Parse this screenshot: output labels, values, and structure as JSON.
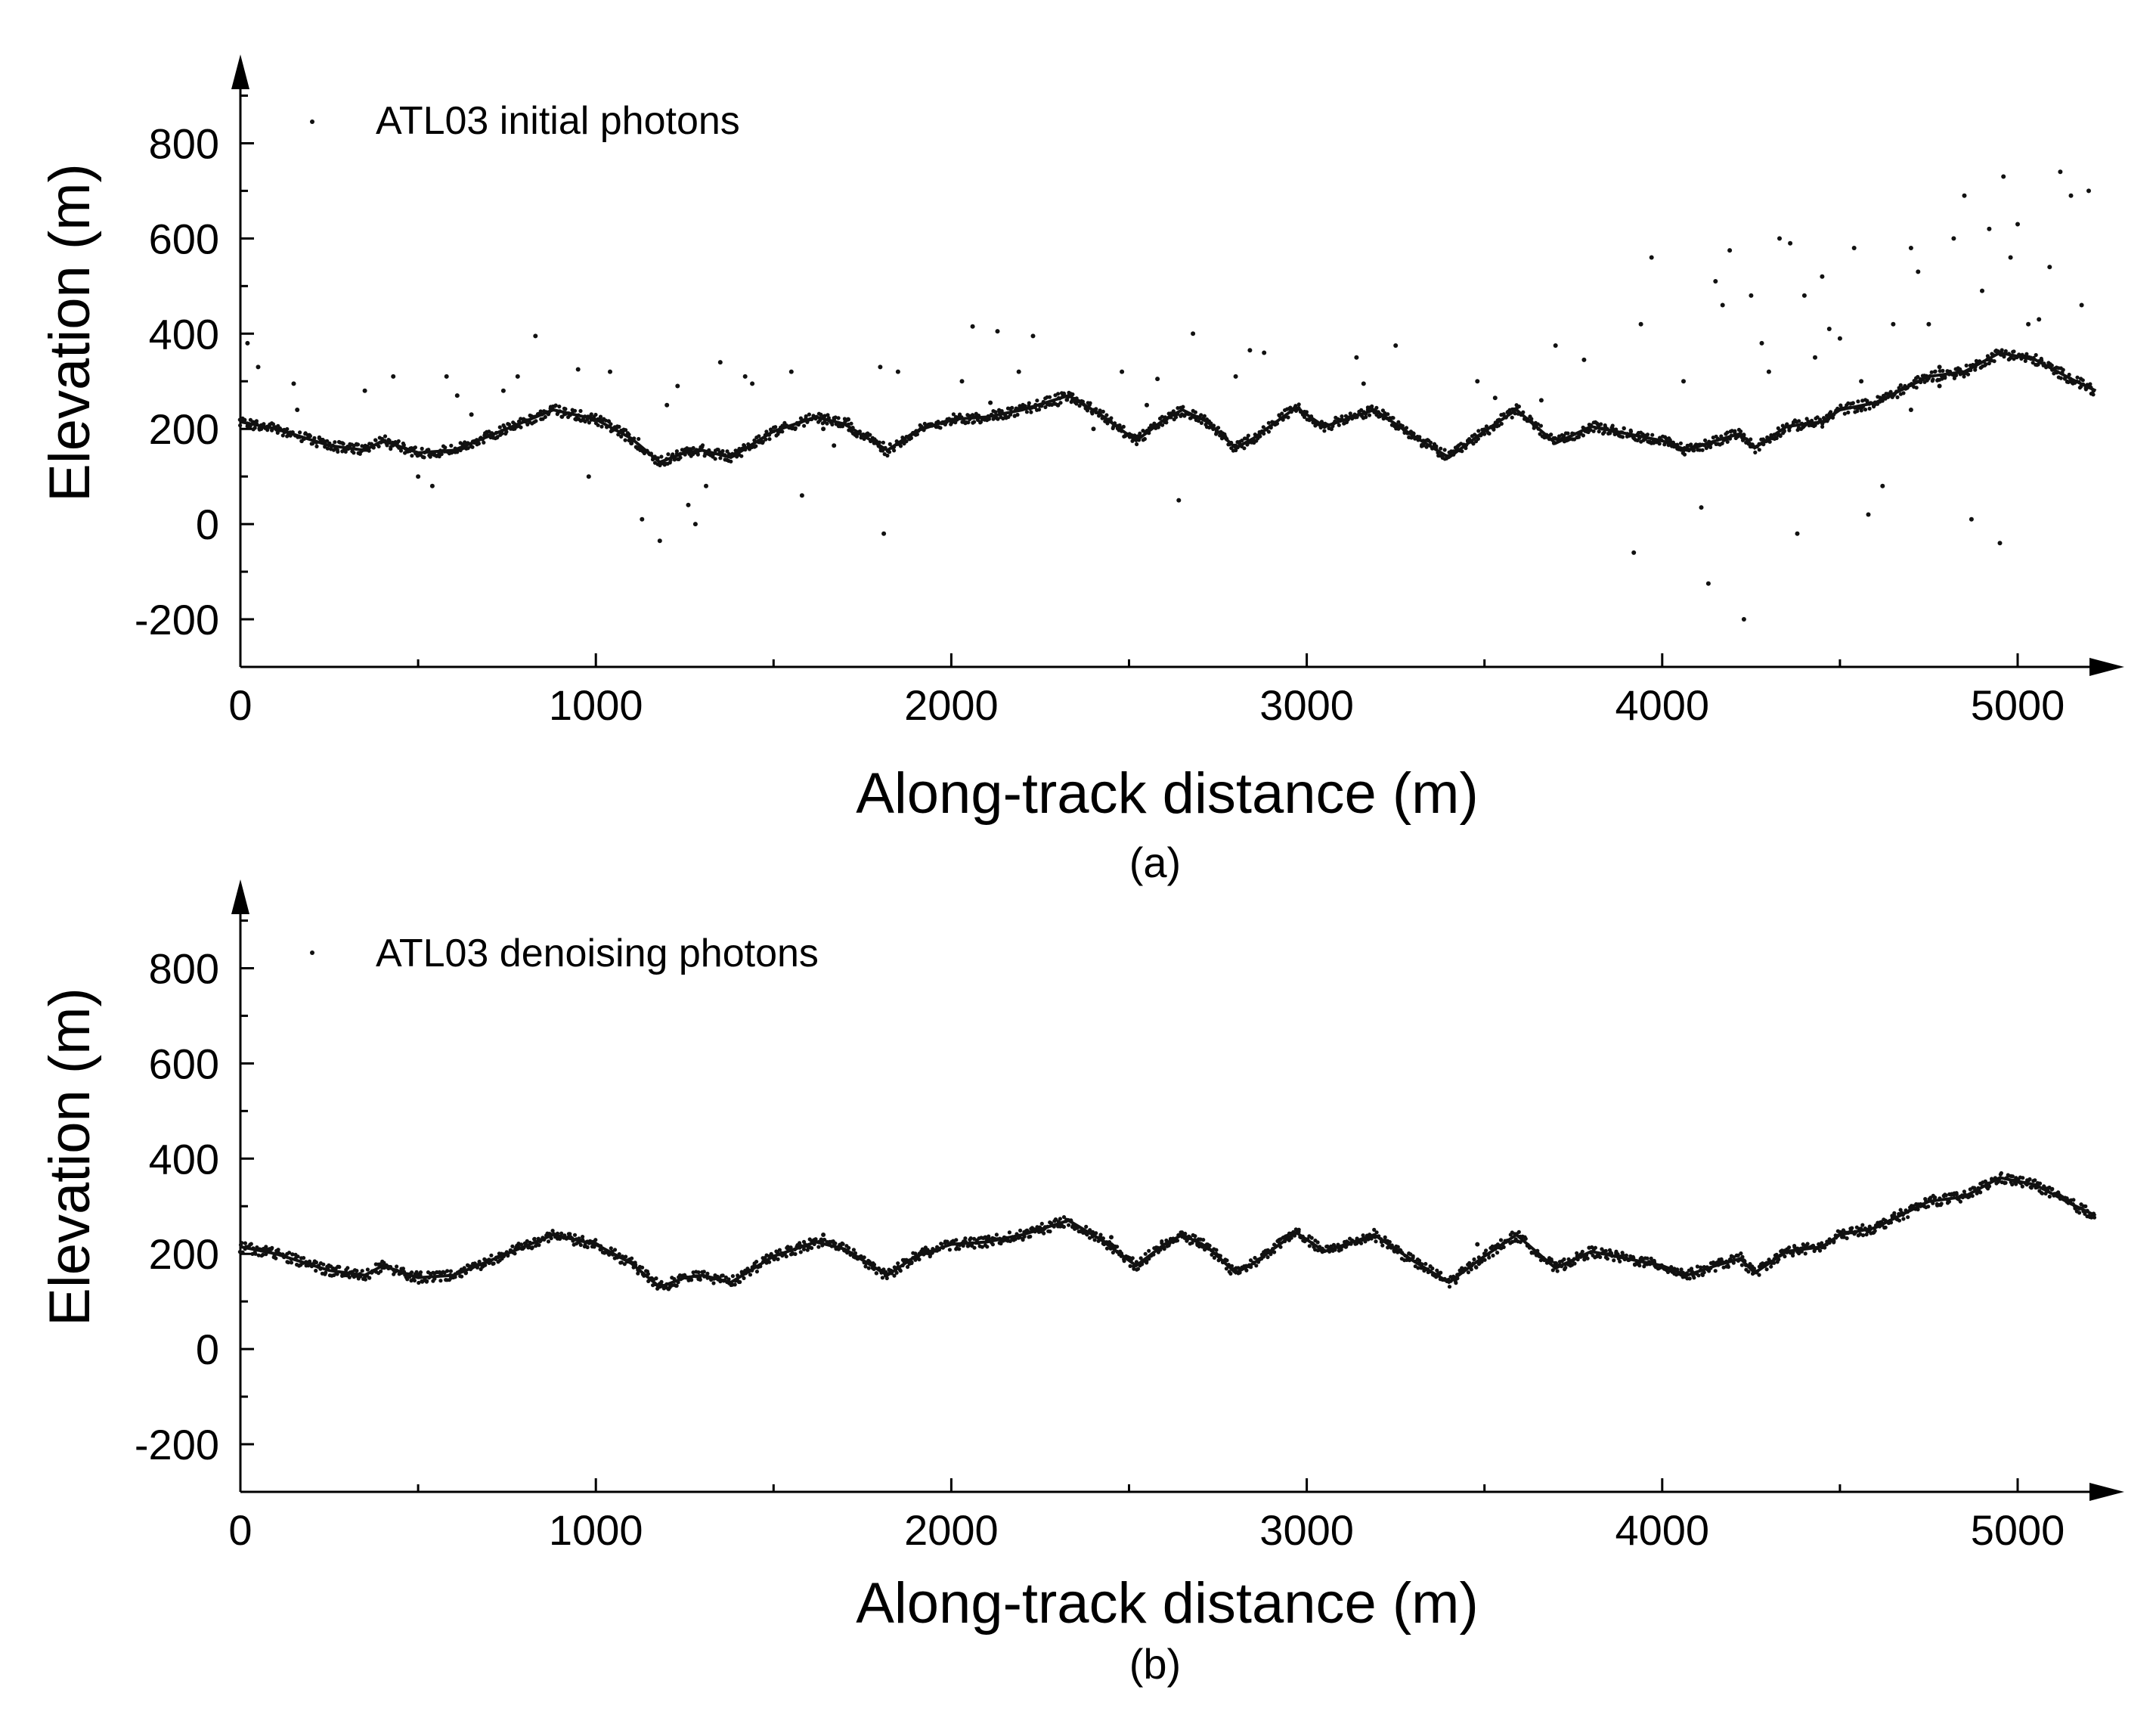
{
  "figure": {
    "panel_captions": [
      "(a)",
      "(b)"
    ]
  },
  "chart_data": [
    {
      "type": "scatter",
      "panel": "(a)",
      "legend": "ATL03 initial photons",
      "legend_position": "top-left",
      "xlabel": "Along-track distance (m)",
      "ylabel": "Elevation (m)",
      "xlim": [
        0,
        5500
      ],
      "ylim": [
        -300,
        950
      ],
      "xticks": [
        0,
        1000,
        2000,
        3000,
        4000,
        5000
      ],
      "xtick_labels": [
        "0",
        "1000",
        "2000",
        "3000",
        "4000",
        "5000"
      ],
      "yticks": [
        -200,
        0,
        200,
        400,
        600,
        800
      ],
      "ytick_labels": [
        "-200",
        "0",
        "200",
        "400",
        "600",
        "800"
      ],
      "grid": false,
      "surface_profile": [
        [
          0,
          215
        ],
        [
          100,
          200
        ],
        [
          250,
          165
        ],
        [
          350,
          155
        ],
        [
          400,
          175
        ],
        [
          500,
          150
        ],
        [
          600,
          155
        ],
        [
          700,
          185
        ],
        [
          880,
          240
        ],
        [
          1000,
          220
        ],
        [
          1100,
          180
        ],
        [
          1180,
          130
        ],
        [
          1250,
          150
        ],
        [
          1300,
          155
        ],
        [
          1380,
          140
        ],
        [
          1500,
          195
        ],
        [
          1620,
          225
        ],
        [
          1700,
          210
        ],
        [
          1820,
          155
        ],
        [
          1900,
          195
        ],
        [
          2000,
          220
        ],
        [
          2100,
          225
        ],
        [
          2200,
          240
        ],
        [
          2330,
          270
        ],
        [
          2420,
          230
        ],
        [
          2520,
          175
        ],
        [
          2600,
          220
        ],
        [
          2650,
          240
        ],
        [
          2720,
          215
        ],
        [
          2800,
          160
        ],
        [
          2850,
          180
        ],
        [
          2970,
          245
        ],
        [
          3050,
          205
        ],
        [
          3190,
          240
        ],
        [
          3300,
          185
        ],
        [
          3400,
          140
        ],
        [
          3500,
          195
        ],
        [
          3590,
          240
        ],
        [
          3700,
          170
        ],
        [
          3800,
          205
        ],
        [
          3900,
          190
        ],
        [
          4000,
          175
        ],
        [
          4070,
          155
        ],
        [
          4150,
          175
        ],
        [
          4220,
          190
        ],
        [
          4260,
          160
        ],
        [
          4350,
          205
        ],
        [
          4450,
          215
        ],
        [
          4500,
          240
        ],
        [
          4600,
          255
        ],
        [
          4750,
          310
        ],
        [
          4850,
          320
        ],
        [
          4950,
          360
        ],
        [
          5050,
          345
        ],
        [
          5150,
          305
        ],
        [
          5220,
          280
        ]
      ],
      "noise_points": [
        [
          20,
          380
        ],
        [
          50,
          330
        ],
        [
          150,
          295
        ],
        [
          160,
          240
        ],
        [
          350,
          280
        ],
        [
          430,
          310
        ],
        [
          500,
          100
        ],
        [
          540,
          80
        ],
        [
          580,
          310
        ],
        [
          610,
          270
        ],
        [
          650,
          230
        ],
        [
          740,
          280
        ],
        [
          780,
          310
        ],
        [
          830,
          395
        ],
        [
          950,
          325
        ],
        [
          980,
          100
        ],
        [
          1040,
          320
        ],
        [
          1100,
          170
        ],
        [
          1130,
          10
        ],
        [
          1180,
          -35
        ],
        [
          1200,
          250
        ],
        [
          1230,
          290
        ],
        [
          1260,
          40
        ],
        [
          1280,
          0
        ],
        [
          1310,
          80
        ],
        [
          1350,
          340
        ],
        [
          1420,
          310
        ],
        [
          1440,
          295
        ],
        [
          1550,
          320
        ],
        [
          1580,
          60
        ],
        [
          1640,
          200
        ],
        [
          1670,
          165
        ],
        [
          1710,
          220
        ],
        [
          1800,
          330
        ],
        [
          1810,
          -20
        ],
        [
          1850,
          320
        ],
        [
          2030,
          300
        ],
        [
          2060,
          415
        ],
        [
          2110,
          255
        ],
        [
          2130,
          405
        ],
        [
          2190,
          320
        ],
        [
          2230,
          395
        ],
        [
          2300,
          250
        ],
        [
          2400,
          200
        ],
        [
          2480,
          320
        ],
        [
          2550,
          250
        ],
        [
          2580,
          305
        ],
        [
          2640,
          50
        ],
        [
          2680,
          400
        ],
        [
          2800,
          310
        ],
        [
          2840,
          365
        ],
        [
          2880,
          360
        ],
        [
          3050,
          205
        ],
        [
          3140,
          350
        ],
        [
          3160,
          295
        ],
        [
          3250,
          375
        ],
        [
          3300,
          190
        ],
        [
          3480,
          300
        ],
        [
          3530,
          265
        ],
        [
          3620,
          220
        ],
        [
          3660,
          260
        ],
        [
          3700,
          375
        ],
        [
          3780,
          345
        ],
        [
          3860,
          200
        ],
        [
          3920,
          -60
        ],
        [
          3940,
          420
        ],
        [
          3970,
          560
        ],
        [
          4020,
          170
        ],
        [
          4060,
          300
        ],
        [
          4110,
          35
        ],
        [
          4130,
          -125
        ],
        [
          4150,
          510
        ],
        [
          4170,
          460
        ],
        [
          4190,
          575
        ],
        [
          4230,
          -200
        ],
        [
          4250,
          480
        ],
        [
          4280,
          380
        ],
        [
          4300,
          320
        ],
        [
          4330,
          600
        ],
        [
          4360,
          590
        ],
        [
          4380,
          -20
        ],
        [
          4400,
          480
        ],
        [
          4430,
          350
        ],
        [
          4450,
          520
        ],
        [
          4470,
          410
        ],
        [
          4500,
          390
        ],
        [
          4540,
          580
        ],
        [
          4560,
          300
        ],
        [
          4580,
          20
        ],
        [
          4620,
          80
        ],
        [
          4650,
          420
        ],
        [
          4700,
          580
        ],
        [
          4720,
          530
        ],
        [
          4750,
          420
        ],
        [
          4780,
          290
        ],
        [
          4820,
          600
        ],
        [
          4850,
          690
        ],
        [
          4870,
          10
        ],
        [
          4900,
          490
        ],
        [
          4920,
          620
        ],
        [
          4950,
          -40
        ],
        [
          4960,
          730
        ],
        [
          4980,
          560
        ],
        [
          5000,
          630
        ],
        [
          5030,
          420
        ],
        [
          5060,
          430
        ],
        [
          5090,
          540
        ],
        [
          5120,
          740
        ],
        [
          5150,
          690
        ],
        [
          5180,
          460
        ],
        [
          5200,
          700
        ],
        [
          4700,
          240
        ],
        [
          4780,
          330
        ],
        [
          4880,
          330
        ]
      ]
    },
    {
      "type": "scatter",
      "panel": "(b)",
      "legend": "ATL03 denoising photons",
      "legend_position": "top-left",
      "xlabel": "Along-track distance (m)",
      "ylabel": "Elevation (m)",
      "xlim": [
        0,
        5500
      ],
      "ylim": [
        -300,
        950
      ],
      "xticks": [
        0,
        1000,
        2000,
        3000,
        4000,
        5000
      ],
      "xtick_labels": [
        "0",
        "1000",
        "2000",
        "3000",
        "4000",
        "5000"
      ],
      "yticks": [
        -200,
        0,
        200,
        400,
        600,
        800
      ],
      "ytick_labels": [
        "-200",
        "0",
        "200",
        "400",
        "600",
        "800"
      ],
      "grid": false,
      "surface_profile": [
        [
          0,
          215
        ],
        [
          100,
          200
        ],
        [
          250,
          165
        ],
        [
          350,
          155
        ],
        [
          400,
          175
        ],
        [
          500,
          150
        ],
        [
          600,
          155
        ],
        [
          700,
          185
        ],
        [
          880,
          240
        ],
        [
          1000,
          220
        ],
        [
          1100,
          180
        ],
        [
          1180,
          130
        ],
        [
          1250,
          150
        ],
        [
          1300,
          155
        ],
        [
          1380,
          140
        ],
        [
          1500,
          195
        ],
        [
          1620,
          225
        ],
        [
          1700,
          210
        ],
        [
          1820,
          155
        ],
        [
          1900,
          195
        ],
        [
          2000,
          220
        ],
        [
          2100,
          225
        ],
        [
          2200,
          240
        ],
        [
          2330,
          270
        ],
        [
          2420,
          230
        ],
        [
          2520,
          175
        ],
        [
          2600,
          220
        ],
        [
          2650,
          240
        ],
        [
          2720,
          215
        ],
        [
          2800,
          160
        ],
        [
          2850,
          180
        ],
        [
          2970,
          245
        ],
        [
          3050,
          205
        ],
        [
          3190,
          240
        ],
        [
          3300,
          185
        ],
        [
          3400,
          140
        ],
        [
          3500,
          195
        ],
        [
          3590,
          240
        ],
        [
          3700,
          170
        ],
        [
          3800,
          205
        ],
        [
          3900,
          190
        ],
        [
          4000,
          175
        ],
        [
          4070,
          155
        ],
        [
          4150,
          175
        ],
        [
          4220,
          190
        ],
        [
          4260,
          160
        ],
        [
          4350,
          205
        ],
        [
          4450,
          215
        ],
        [
          4500,
          240
        ],
        [
          4600,
          255
        ],
        [
          4750,
          310
        ],
        [
          4850,
          320
        ],
        [
          4950,
          360
        ],
        [
          5050,
          345
        ],
        [
          5150,
          305
        ],
        [
          5220,
          280
        ]
      ],
      "noise_points": [
        [
          1640,
          240
        ],
        [
          2450,
          235
        ],
        [
          3110,
          215
        ],
        [
          3480,
          220
        ],
        [
          3980,
          175
        ]
      ]
    }
  ]
}
